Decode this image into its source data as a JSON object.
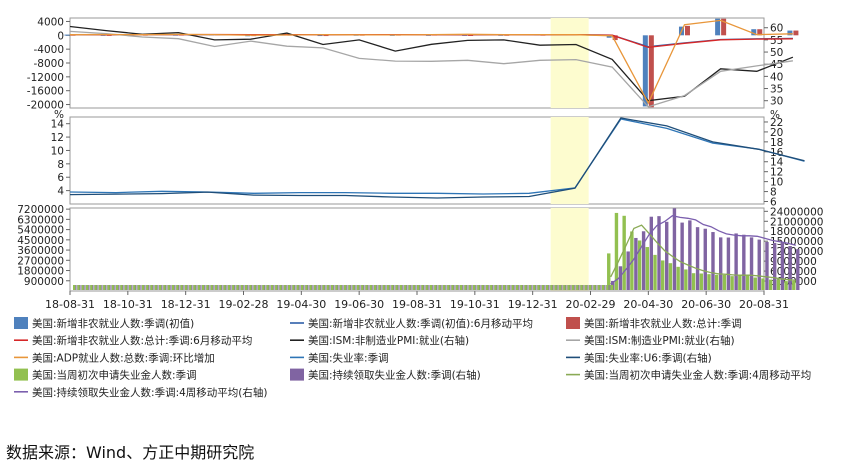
{
  "source_text": "数据来源：Wind、方正中期研究院",
  "x_tick_labels": [
    "18-08-31",
    "18-10-31",
    "18-12-31",
    "19-02-28",
    "19-04-30",
    "19-06-30",
    "19-08-31",
    "19-10-31",
    "19-12-31",
    "20-02-29",
    "20-04-30",
    "20-06-30",
    "20-08-31"
  ],
  "chart_data": [
    {
      "type": "line",
      "x_labels": [
        "18-08-31",
        "18-10-31",
        "18-12-31",
        "19-02-28",
        "19-04-30",
        "19-06-30",
        "19-08-31",
        "19-10-31",
        "19-12-31",
        "20-02-29",
        "20-04-30",
        "20-06-30",
        "20-08-31"
      ],
      "highlight_band": [
        "19-12-31",
        "20-01-31"
      ],
      "y_left": {
        "ticks": [
          4000,
          0,
          -4000,
          -8000,
          -12000,
          -16000,
          -20000
        ],
        "range": [
          -21000,
          5000
        ]
      },
      "y_right": {
        "ticks": [
          60,
          55,
          50,
          45,
          40,
          35,
          30
        ],
        "range": [
          27,
          64
        ]
      },
      "series": [
        {
          "name": "美国:新增非农就业人数:季调(初值)",
          "kind": "bar",
          "axis": "left",
          "color": "#4f81bd",
          "values": [
            201,
            134,
            250,
            196,
            304,
            20,
            224,
            75,
            164,
            130,
            136,
            128,
            145,
            225,
            273,
            -701,
            -20537,
            2509,
            4800,
            1763,
            1371
          ]
        },
        {
          "name": "美国:新增非农就业人数:季调(初值):6月移动平均",
          "kind": "line",
          "axis": "left",
          "color": "#2e5fa8",
          "values": [
            180,
            170,
            195,
            200,
            215,
            205,
            180,
            175,
            160,
            165,
            170,
            160,
            165,
            150,
            175,
            45,
            -3300,
            -2200,
            -1200,
            -1000,
            -900
          ]
        },
        {
          "name": "美国:新增非农就业人数:总计:季调",
          "kind": "bar",
          "axis": "left",
          "color": "#c0504d",
          "values": [
            165,
            118,
            196,
            227,
            312,
            56,
            196,
            72,
            178,
            193,
            214,
            96,
            152,
            184,
            251,
            -1373,
            -20787,
            2725,
            4791,
            1761,
            1371
          ]
        },
        {
          "name": "美国:新增非农就业人数:总计:季调:6月移动平均",
          "kind": "line",
          "axis": "left",
          "color": "#d62728",
          "values": [
            200,
            190,
            210,
            215,
            225,
            205,
            190,
            180,
            170,
            175,
            180,
            170,
            175,
            165,
            180,
            20,
            -3500,
            -2300,
            -1300,
            -1100,
            -1000
          ]
        },
        {
          "name": "美国:ISM:非制造业PMI:就业(右轴)",
          "kind": "line",
          "axis": "right",
          "color": "#222222",
          "values": [
            60.5,
            58.8,
            57.3,
            58.0,
            55.0,
            55.3,
            57.8,
            53.1,
            55.0,
            50.4,
            53.2,
            54.8,
            55.0,
            52.8,
            53.1,
            47.0,
            30.0,
            31.8,
            43.1,
            42.1,
            47.9
          ]
        },
        {
          "name": "美国:ISM:制造业PMI:就业(右轴)",
          "kind": "line",
          "axis": "right",
          "color": "#a6a6a6",
          "values": [
            58.5,
            57.6,
            56.2,
            55.5,
            52.3,
            54.5,
            52.4,
            51.7,
            47.4,
            46.3,
            46.2,
            46.6,
            45.2,
            46.6,
            46.9,
            43.8,
            27.5,
            32.1,
            42.1,
            44.3,
            46.4
          ]
        },
        {
          "name": "美国:ADP就业人数:总数:季调:环比增加",
          "kind": "line",
          "axis": "left",
          "color": "#e8963a",
          "values": [
            163,
            227,
            179,
            271,
            213,
            41,
            102,
            195,
            135,
            125,
            202,
            291,
            183,
            205,
            183,
            -149,
            -19557,
            3065,
            4314,
            212,
            428
          ]
        }
      ]
    },
    {
      "type": "line",
      "x_labels": [
        "18-08-31",
        "18-10-31",
        "18-12-31",
        "19-02-28",
        "19-04-30",
        "19-06-30",
        "19-08-31",
        "19-10-31",
        "19-12-31",
        "20-02-29",
        "20-04-30",
        "20-06-30",
        "20-08-31"
      ],
      "highlight_band": [
        "19-12-31",
        "20-01-31"
      ],
      "y_left": {
        "ticks": [
          14,
          12,
          10,
          8,
          6,
          4
        ],
        "range": [
          2,
          15
        ],
        "unit": "%"
      },
      "y_right": {
        "ticks": [
          22,
          20,
          18,
          16,
          14,
          12,
          10,
          8,
          6
        ],
        "range": [
          5.5,
          23
        ],
        "unit": "%"
      },
      "series": [
        {
          "name": "美国:失业率:季调",
          "kind": "line",
          "axis": "left",
          "color": "#2e75b6",
          "values": [
            3.8,
            3.7,
            3.9,
            3.8,
            3.6,
            3.7,
            3.7,
            3.6,
            3.6,
            3.5,
            3.6,
            4.4,
            14.7,
            13.3,
            11.1,
            10.2,
            8.4
          ]
        },
        {
          "name": "美国:失业率:U6:季调(右轴)",
          "kind": "line",
          "axis": "right",
          "color": "#1f4e79",
          "values": [
            7.4,
            7.5,
            7.6,
            7.9,
            7.3,
            7.2,
            7.2,
            6.9,
            6.7,
            6.9,
            7.0,
            8.7,
            22.8,
            21.2,
            18.0,
            16.5,
            14.2
          ]
        }
      ]
    },
    {
      "type": "bar",
      "x_labels": [
        "18-08-31",
        "18-10-31",
        "18-12-31",
        "19-02-28",
        "19-04-30",
        "19-06-30",
        "19-08-31",
        "19-10-31",
        "19-12-31",
        "20-02-29",
        "20-04-30",
        "20-06-30",
        "20-08-31"
      ],
      "highlight_band": [
        "19-12-31",
        "20-01-31"
      ],
      "y_left": {
        "ticks": [
          7200000,
          6300000,
          5400000,
          4500000,
          3600000,
          2700000,
          1800000,
          900000
        ],
        "range": [
          0,
          7300000
        ]
      },
      "y_right": {
        "ticks": [
          24000000,
          21000000,
          18000000,
          15000000,
          12000000,
          9000000,
          6000000,
          3000000
        ],
        "range": [
          0,
          25000000
        ]
      },
      "series": [
        {
          "name": "美国:当周初次申请失业金人数:季调",
          "kind": "bar",
          "axis": "left",
          "color": "#92c050",
          "values": [
            3307000,
            6867000,
            6615000,
            5237000,
            4442000,
            3867000,
            3176000,
            2687000,
            2446000,
            2126000,
            1897000,
            1566000,
            1540000,
            1482000,
            1427000,
            1416000,
            1307000,
            1422000,
            1435000,
            1186000,
            1104000,
            1006000,
            1011000,
            870000,
            884000
          ]
        },
        {
          "name": "美国:持续领取失业金人数:季调(右轴)",
          "kind": "bar",
          "axis": "right",
          "color": "#8064a2",
          "values": [
            3029000,
            7446000,
            11914000,
            15976000,
            17992000,
            22377000,
            22548000,
            20838000,
            24912000,
            20606000,
            21268000,
            19231000,
            18760000,
            17760000,
            16151000,
            16107000,
            17338000,
            16951000,
            16151000,
            15486000,
            14759000,
            14492000,
            14535000,
            13544000,
            12580000
          ]
        },
        {
          "name": "美国:当周初次申请失业金人数:季调:4周移动平均",
          "kind": "line",
          "axis": "left",
          "color": "#8aaa55",
          "values": [
            1240000,
            2612000,
            4038000,
            5506000,
            5790000,
            5040000,
            4257000,
            3543000,
            3044000,
            2584000,
            2289000,
            2009000,
            1782000,
            1621000,
            1504000,
            1466000,
            1408000,
            1393000,
            1395000,
            1337000,
            1262000,
            1183000,
            1077000,
            998000,
            943000
          ]
        },
        {
          "name": "美国:持续领取失业金人数:季调:4周移动平均(右轴)",
          "kind": "line",
          "axis": "right",
          "color": "#7b5fae",
          "values": [
            2100000,
            3810000,
            6640000,
            9591000,
            13332000,
            17065000,
            19723000,
            20939000,
            22669000,
            22171000,
            21906000,
            21406000,
            20029000,
            19380000,
            18140000,
            17207000,
            16844000,
            16637000,
            16637000,
            16482000,
            15837000,
            15222000,
            14818000,
            14333000,
            13793000
          ]
        }
      ]
    }
  ],
  "legend": [
    {
      "label": "美国:新增非农就业人数:季调(初值)",
      "swatch": "box",
      "color": "#4f81bd"
    },
    {
      "label": "美国:新增非农就业人数:季调(初值):6月移动平均",
      "swatch": "line",
      "color": "#2e5fa8"
    },
    {
      "label": "美国:新增非农就业人数:总计:季调",
      "swatch": "box",
      "color": "#c0504d"
    },
    {
      "label": "美国:新增非农就业人数:总计:季调:6月移动平均",
      "swatch": "line",
      "color": "#d62728"
    },
    {
      "label": "美国:ISM:非制造业PMI:就业(右轴)",
      "swatch": "line",
      "color": "#222222"
    },
    {
      "label": "美国:ISM:制造业PMI:就业(右轴)",
      "swatch": "line",
      "color": "#a6a6a6"
    },
    {
      "label": "美国:ADP就业人数:总数:季调:环比增加",
      "swatch": "line",
      "color": "#e8963a"
    },
    {
      "label": "美国:失业率:季调",
      "swatch": "line",
      "color": "#2e75b6"
    },
    {
      "label": "美国:失业率:U6:季调(右轴)",
      "swatch": "line",
      "color": "#1f4e79"
    },
    {
      "label": "美国:当周初次申请失业金人数:季调",
      "swatch": "box",
      "color": "#92c050"
    },
    {
      "label": "美国:持续领取失业金人数:季调(右轴)",
      "swatch": "box",
      "color": "#8064a2"
    },
    {
      "label": "美国:当周初次申请失业金人数:季调:4周移动平均",
      "swatch": "line",
      "color": "#8aaa55"
    },
    {
      "label": "美国:持续领取失业金人数:季调:4周移动平均(右轴)",
      "swatch": "line",
      "color": "#7b5fae"
    }
  ]
}
